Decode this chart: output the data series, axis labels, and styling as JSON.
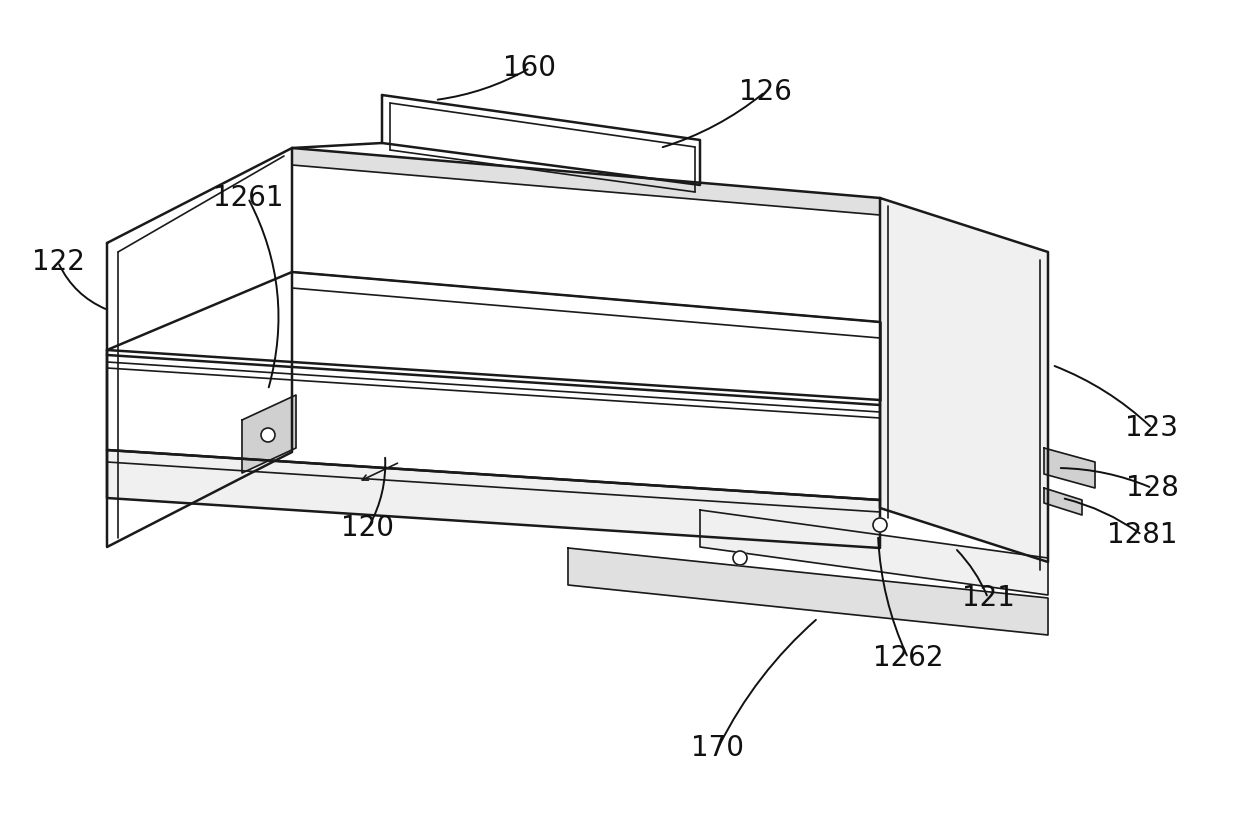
{
  "bg_color": "#ffffff",
  "lc": "#1a1a1a",
  "lw_main": 1.8,
  "lw_thin": 1.2,
  "fill_white": "#ffffff",
  "fill_light": "#f0f0f0",
  "fill_mid": "#e0e0e0",
  "fill_dark": "#d0d0d0",
  "annotations": [
    [
      "160",
      530,
      68,
      435,
      100,
      -0.1
    ],
    [
      "126",
      765,
      92,
      660,
      148,
      -0.1
    ],
    [
      "1261",
      248,
      198,
      268,
      390,
      -0.2
    ],
    [
      "122",
      58,
      262,
      108,
      310,
      0.2
    ],
    [
      "120",
      368,
      528,
      385,
      455,
      0.15
    ],
    [
      "123",
      1152,
      428,
      1052,
      365,
      0.1
    ],
    [
      "128",
      1152,
      488,
      1058,
      468,
      0.1
    ],
    [
      "1281",
      1142,
      535,
      1062,
      498,
      0.1
    ],
    [
      "121",
      988,
      598,
      955,
      548,
      0.1
    ],
    [
      "1262",
      908,
      658,
      878,
      535,
      -0.1
    ],
    [
      "170",
      718,
      748,
      818,
      618,
      -0.1
    ]
  ]
}
